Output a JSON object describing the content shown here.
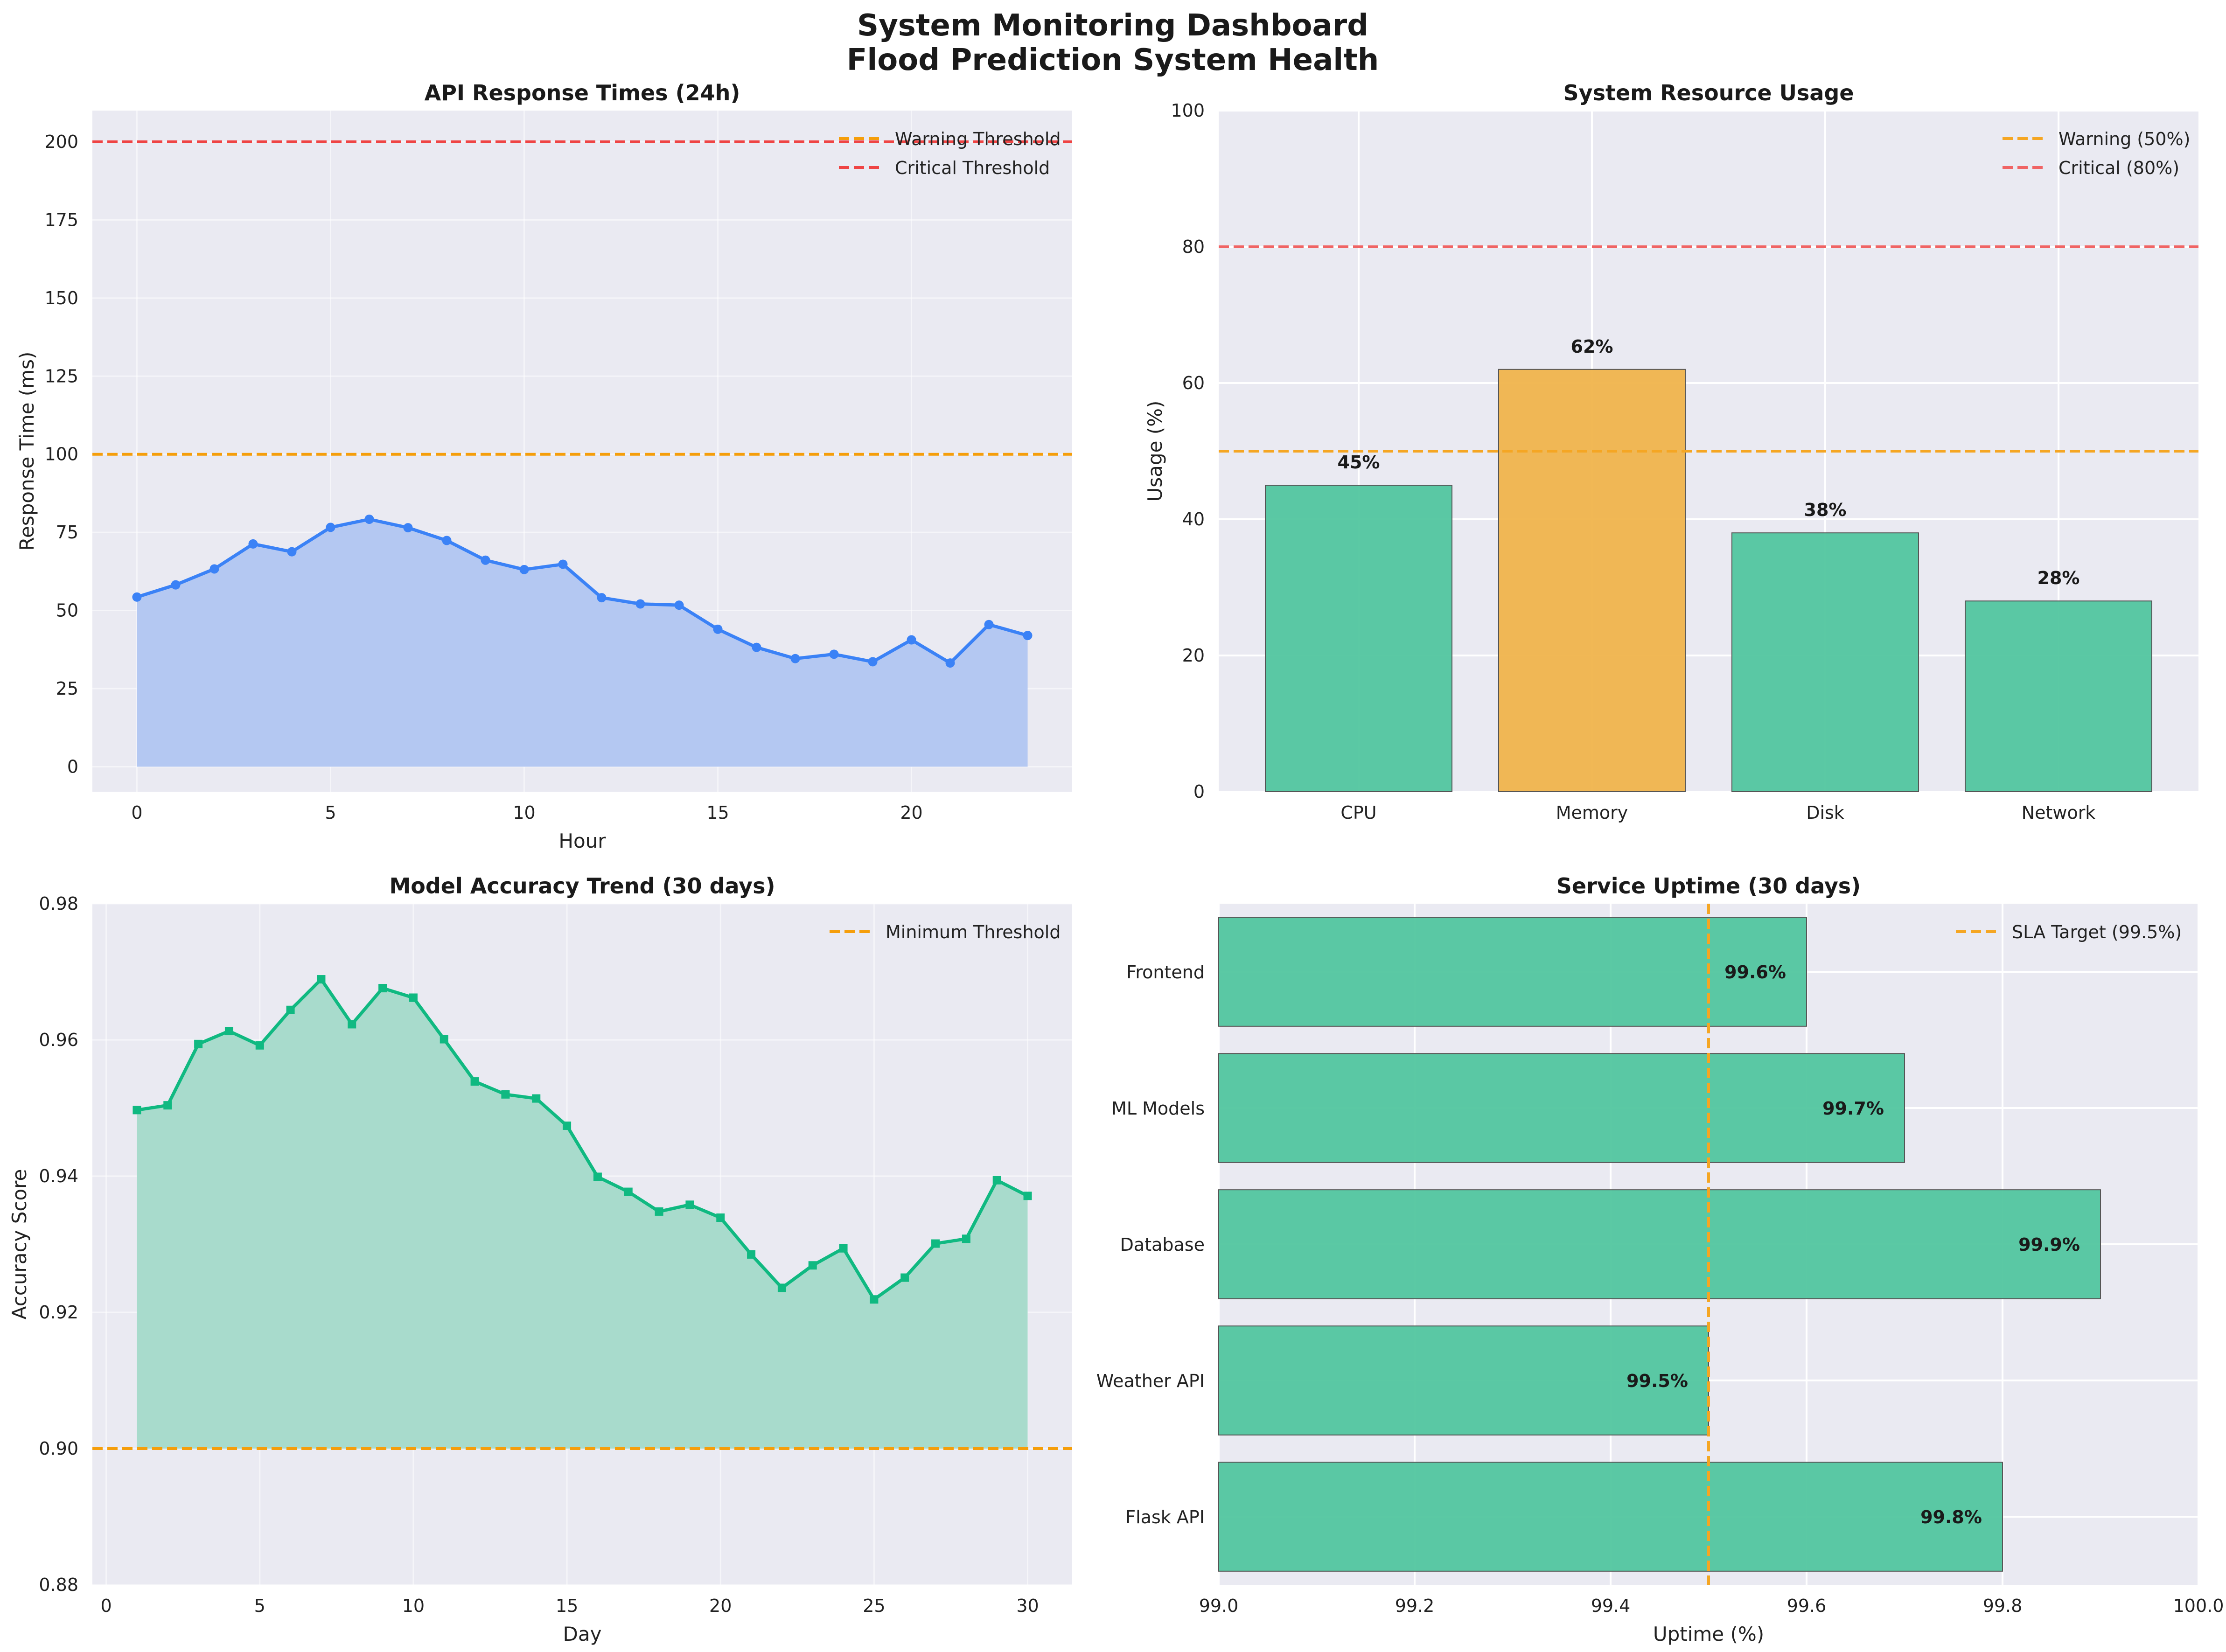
{
  "figure": {
    "title_line1": "System Monitoring Dashboard",
    "title_line2": "Flood Prediction System Health"
  },
  "colors": {
    "background": "#eaeaf2",
    "grid": "#ffffff",
    "blue_line": "#3b82f6",
    "blue_fill": "#b4c8f2",
    "green": "#10b981",
    "green_fill": "#a8dbcc",
    "bar_green": "#52c69f",
    "bar_orange": "#f0b44c",
    "warning": "#f59e0b",
    "critical": "#ef4444"
  },
  "chart_data": [
    {
      "type": "line",
      "title": "API Response Times (24h)",
      "xlabel": "Hour",
      "ylabel": "Response Time (ms)",
      "xlim": [
        -1.15,
        24.15
      ],
      "ylim": [
        -8,
        210
      ],
      "xticks": [
        0,
        5,
        10,
        15,
        20
      ],
      "yticks": [
        0,
        25,
        50,
        75,
        100,
        125,
        150,
        175,
        200
      ],
      "x": [
        0,
        1,
        2,
        3,
        4,
        5,
        6,
        7,
        8,
        9,
        10,
        11,
        12,
        13,
        14,
        15,
        16,
        17,
        18,
        19,
        20,
        21,
        22,
        23
      ],
      "series": [
        {
          "values": [
            54.3,
            58.2,
            63.3,
            71.3,
            68.8,
            76.6,
            79.2,
            76.5,
            72.4,
            66.1,
            63.1,
            64.8,
            54.1,
            52.1,
            51.7,
            44,
            38.2,
            34.6,
            36,
            33.6,
            40.6,
            33.2,
            45.5,
            42
          ]
        }
      ],
      "reference_lines": [
        {
          "label": "Warning Threshold",
          "value": 100,
          "color": "#f59e0b"
        },
        {
          "label": "Critical Threshold",
          "value": 200,
          "color": "#ef4444"
        }
      ],
      "legend": "top-right"
    },
    {
      "type": "bar",
      "title": "System Resource Usage",
      "xlabel": "",
      "ylabel": "Usage (%)",
      "ylim": [
        0,
        100
      ],
      "yticks": [
        0,
        20,
        40,
        60,
        80,
        100
      ],
      "categories": [
        "CPU",
        "Memory",
        "Disk",
        "Network"
      ],
      "values": [
        45,
        62,
        38,
        28
      ],
      "value_labels": [
        "45%",
        "62%",
        "38%",
        "28%"
      ],
      "bar_colors": [
        "#52c69f",
        "#f0b44c",
        "#52c69f",
        "#52c69f"
      ],
      "reference_lines": [
        {
          "label": "Warning (50%)",
          "value": 50,
          "color": "#f5a623"
        },
        {
          "label": "Critical (80%)",
          "value": 80,
          "color": "#f06464"
        }
      ],
      "legend": "top-right"
    },
    {
      "type": "line",
      "title": "Model Accuracy Trend (30 days)",
      "xlabel": "Day",
      "ylabel": "Accuracy Score",
      "xlim": [
        -0.45,
        31.45
      ],
      "ylim": [
        0.88,
        0.98
      ],
      "xticks": [
        0,
        5,
        10,
        15,
        20,
        25,
        30
      ],
      "yticks": [
        "0.88",
        "0.90",
        "0.92",
        "0.94",
        "0.96",
        "0.98"
      ],
      "fill_base": 0.9,
      "x": [
        1,
        2,
        3,
        4,
        5,
        6,
        7,
        8,
        9,
        10,
        11,
        12,
        13,
        14,
        15,
        16,
        17,
        18,
        19,
        20,
        21,
        22,
        23,
        24,
        25,
        26,
        27,
        28,
        29,
        30
      ],
      "series": [
        {
          "values": [
            0.9497,
            0.9504,
            0.9594,
            0.9613,
            0.9592,
            0.9644,
            0.9689,
            0.9623,
            0.9676,
            0.9662,
            0.9601,
            0.9539,
            0.952,
            0.9514,
            0.9474,
            0.9399,
            0.9377,
            0.9348,
            0.9358,
            0.9339,
            0.9285,
            0.9236,
            0.9269,
            0.9294,
            0.9219,
            0.9251,
            0.9301,
            0.9308,
            0.9394,
            0.9371
          ]
        }
      ],
      "reference_lines": [
        {
          "label": "Minimum Threshold",
          "value": 0.9,
          "color": "#f59e0b"
        }
      ],
      "legend": "top-right"
    },
    {
      "type": "bar",
      "orientation": "horizontal",
      "title": "Service Uptime (30 days)",
      "xlabel": "Uptime (%)",
      "ylabel": "",
      "xlim": [
        99.0,
        100.0
      ],
      "xticks": [
        "99.0",
        "99.2",
        "99.4",
        "99.6",
        "99.8",
        "100.0"
      ],
      "categories": [
        "Frontend",
        "ML Models",
        "Database",
        "Weather API",
        "Flask API"
      ],
      "values": [
        99.6,
        99.7,
        99.9,
        99.5,
        99.8
      ],
      "value_labels": [
        "99.6%",
        "99.7%",
        "99.9%",
        "99.5%",
        "99.8%"
      ],
      "reference_lines": [
        {
          "label": "SLA Target (99.5%)",
          "value": 99.5,
          "color": "#f5a623"
        }
      ],
      "legend": "top-right"
    }
  ]
}
